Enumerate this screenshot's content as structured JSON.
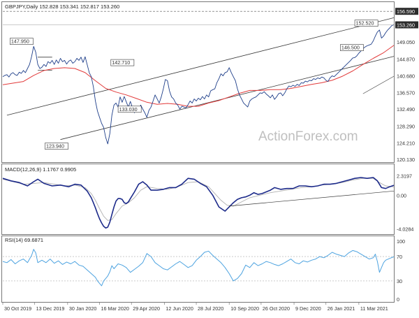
{
  "colors": {
    "price": "#1f3f8a",
    "ma": "#e23a3a",
    "macd": "#1c2a8a",
    "signal": "#b0b0b0",
    "rsi": "#4da3e0",
    "trend": "#3a3a3a",
    "axis_text": "#333333",
    "price_tag_bg": "#2b2b2b",
    "price_tag_text": "#ffffff",
    "watermark": "#bfbfbf"
  },
  "chart_data": [
    {
      "panel": "price",
      "type": "line",
      "title": "GBPJPY,Daily 152.828 153.341 152.817 153.260",
      "watermark": "ActionForex.com",
      "ylim": [
        120.13,
        158.0
      ],
      "y_ticks": [
        "156.590",
        "153.260",
        "149.050",
        "144.870",
        "140.680",
        "136.570",
        "132.490",
        "128.290",
        "124.210",
        "120.130"
      ],
      "x_ticks": [
        "30 Oct 2019",
        "13 Dec 2019",
        "30 Jan 2020",
        "16 Mar 2020",
        "29 Apr 2020",
        "12 Jun 2020",
        "28 Jul 2020",
        "10 Sep 2020",
        "26 Oct 2020",
        "9 Dec 2020",
        "26 Jan 2021",
        "11 Mar 2021"
      ],
      "last_price": "153.260",
      "series": [
        {
          "x": [
            0,
            2,
            4,
            6,
            8,
            10,
            12,
            14,
            16,
            18,
            20,
            22,
            24,
            26,
            28,
            30,
            32,
            34,
            36,
            38,
            40,
            42,
            44,
            46,
            48,
            50,
            52,
            54,
            56,
            58,
            60,
            62,
            64,
            66,
            68,
            70,
            72,
            74,
            76,
            78,
            80,
            82,
            84,
            86,
            88,
            90,
            92,
            94,
            96,
            98,
            100,
            102,
            104,
            106,
            108,
            110,
            112,
            114,
            116,
            118,
            120,
            122,
            124,
            126,
            128,
            130,
            132,
            134,
            136,
            138,
            140,
            142,
            144,
            146,
            148,
            150,
            152,
            154,
            156,
            158,
            160,
            162,
            164,
            166,
            168,
            170,
            172,
            174,
            176,
            178,
            180,
            182,
            184,
            186,
            188,
            190,
            192,
            194,
            196,
            198,
            200,
            202,
            204,
            206,
            208,
            210,
            212,
            214,
            216,
            218,
            220,
            222,
            224,
            226,
            228,
            230,
            232,
            234,
            236,
            238,
            240,
            242,
            244,
            246,
            248,
            250,
            252,
            254,
            256,
            258,
            260,
            262,
            264,
            266,
            268,
            270,
            272,
            274,
            276,
            278,
            280,
            282,
            284,
            286,
            288,
            290,
            292,
            294,
            296,
            298,
            300,
            302,
            304,
            306,
            308,
            310,
            312,
            314,
            316,
            318,
            320,
            322,
            324,
            326,
            328,
            330,
            332,
            334,
            336,
            338,
            340,
            342,
            344,
            346,
            348,
            350,
            352,
            354,
            356,
            358,
            360,
            362,
            364,
            366,
            368,
            370,
            372,
            374,
            376,
            378,
            380
          ],
          "values": [
            140.5,
            140.8,
            141.0,
            140.4,
            141.2,
            141.5,
            141.0,
            140.8,
            141.6,
            141.3,
            142.0,
            141.5,
            142.5,
            143.5,
            145.5,
            147.95,
            146.5,
            143.5,
            142.5,
            142.8,
            143.5,
            143.0,
            144.2,
            143.8,
            144.5,
            143.5,
            144.6,
            143.8,
            145.0,
            144.2,
            144.5,
            143.6,
            144.3,
            144.6,
            143.8,
            144.2,
            145.0,
            144.5,
            145.3,
            144.0,
            145.4,
            143.5,
            141.5,
            140.5,
            138.0,
            134.5,
            132.0,
            130.5,
            129.0,
            128.0,
            125.5,
            123.94,
            126.5,
            131.0,
            133.5,
            134.0,
            133.0,
            135.5,
            134.2,
            135.6,
            134.3,
            133.0,
            134.4,
            132.8,
            131.6,
            133.0,
            132.0,
            133.5,
            132.5,
            131.6,
            130.5,
            132.2,
            133.0,
            134.5,
            136.0,
            135.0,
            134.0,
            135.5,
            137.5,
            139.8,
            139.5,
            137.0,
            135.5,
            135.0,
            134.0,
            133.5,
            132.5,
            133.2,
            133.0,
            132.8,
            133.6,
            134.5,
            134.0,
            135.0,
            134.5,
            135.2,
            134.8,
            135.6,
            135.0,
            136.0,
            135.5,
            137.0,
            137.3,
            137.5,
            139.0,
            140.0,
            141.2,
            140.7,
            141.5,
            141.7,
            142.71,
            141.5,
            140.5,
            139.5,
            137.5,
            136.0,
            135.0,
            134.0,
            133.5,
            133.03,
            134.5,
            135.0,
            135.3,
            135.5,
            136.0,
            136.5,
            136.4,
            136.8,
            136.2,
            135.8,
            135.3,
            136.0,
            134.9,
            135.5,
            136.3,
            136.5,
            135.8,
            136.5,
            137.5,
            138.2,
            138.0,
            138.4,
            138.1,
            138.6,
            138.3,
            139.0,
            138.9,
            139.4,
            139.2,
            139.6,
            139.5,
            140.0,
            139.8,
            140.2,
            140.0,
            140.4,
            140.2,
            139.6,
            139.3,
            140.2,
            140.7,
            140.5,
            141.0,
            141.5,
            142.0,
            142.5,
            143.0,
            143.5,
            144.0,
            144.5,
            145.1,
            145.2,
            145.6,
            146.3,
            146.8,
            147.4,
            147.8,
            148.1,
            148.3,
            148.5,
            149.3,
            150.5,
            151.5,
            152.0,
            150.0,
            150.5,
            151.3,
            152.0,
            152.5,
            153.1,
            153.26
          ]
        },
        {
          "name": "MA",
          "x": [
            0,
            20,
            30,
            40,
            50,
            60,
            70,
            80,
            90,
            100,
            110,
            120,
            130,
            140,
            150,
            160,
            170,
            180,
            190,
            200,
            210,
            220,
            230,
            240,
            250,
            260,
            270,
            280,
            290,
            300,
            310,
            320,
            330,
            340,
            350,
            360,
            370,
            380
          ],
          "values": [
            138.5,
            139.3,
            140.8,
            142.0,
            142.5,
            142.7,
            142.5,
            141.5,
            139.5,
            137.6,
            136.7,
            136.0,
            135.1,
            134.2,
            133.7,
            133.9,
            133.7,
            133.2,
            133.2,
            134.0,
            134.6,
            135.5,
            136.4,
            137.1,
            137.1,
            137.3,
            137.3,
            137.6,
            138.1,
            138.6,
            139.0,
            139.6,
            140.6,
            141.9,
            143.5,
            145.0,
            146.4,
            148.2
          ]
        }
      ],
      "annotations": [
        "147.950",
        "123.940",
        "142.710",
        "133.030",
        "152.520",
        "146.500"
      ]
    },
    {
      "panel": "macd",
      "type": "line",
      "title": "MACD(12,26,9) 1.1767 0.9905",
      "ylim": [
        -4.3,
        2.6
      ],
      "y_ticks": [
        "2.3197",
        "0.00",
        "-4.0284"
      ],
      "series": [
        {
          "x": [
            0,
            8,
            16,
            24,
            30,
            34,
            40,
            48,
            56,
            64,
            70,
            76,
            82,
            86,
            88,
            90,
            92,
            94,
            96,
            98,
            100,
            102,
            104,
            106,
            108,
            110,
            112,
            114,
            116,
            118,
            120,
            122,
            124,
            128,
            132,
            136,
            140,
            144,
            150,
            156,
            162,
            168,
            174,
            180,
            186,
            192,
            198,
            204,
            210,
            216,
            220,
            224,
            228,
            232,
            236,
            240,
            244,
            248,
            252,
            256,
            260,
            264,
            270,
            276,
            282,
            288,
            294,
            300,
            306,
            312,
            318,
            324,
            330,
            336,
            342,
            348,
            354,
            360,
            364,
            368,
            372,
            376,
            380
          ],
          "values": [
            2.0,
            1.7,
            1.5,
            1.1,
            1.6,
            1.9,
            1.4,
            1.1,
            1.2,
            1.0,
            1.3,
            1.2,
            0.5,
            -0.3,
            -0.9,
            -1.5,
            -2.2,
            -2.8,
            -3.3,
            -3.7,
            -3.9,
            -3.8,
            -3.2,
            -2.3,
            -1.4,
            -0.7,
            -0.4,
            -0.4,
            -0.5,
            -0.9,
            -1.0,
            -0.8,
            -0.4,
            0.4,
            1.3,
            1.6,
            1.2,
            0.6,
            0.6,
            0.7,
            0.9,
            0.9,
            1.3,
            2.0,
            1.9,
            1.4,
            1.0,
            0.0,
            -1.4,
            -1.9,
            -1.4,
            -0.9,
            -0.5,
            -0.3,
            -0.2,
            0.0,
            0.3,
            0.1,
            0.2,
            0.4,
            0.6,
            0.9,
            0.7,
            0.8,
            0.8,
            1.1,
            1.1,
            1.0,
            1.1,
            1.3,
            1.3,
            1.4,
            1.6,
            1.8,
            2.0,
            2.1,
            2.0,
            2.1,
            1.7,
            0.9,
            0.8,
            1.0,
            1.18
          ]
        },
        {
          "x": [
            0,
            10,
            20,
            30,
            40,
            50,
            60,
            70,
            80,
            86,
            90,
            94,
            98,
            102,
            106,
            110,
            116,
            122,
            128,
            134,
            140,
            150,
            160,
            170,
            180,
            190,
            200,
            206,
            212,
            218,
            224,
            232,
            240,
            250,
            260,
            270,
            280,
            290,
            300,
            310,
            320,
            330,
            340,
            350,
            360,
            366,
            372,
            380
          ],
          "values": [
            1.9,
            1.6,
            1.3,
            1.4,
            1.5,
            1.3,
            1.1,
            1.2,
            0.9,
            0.2,
            -0.6,
            -1.6,
            -2.5,
            -3.0,
            -2.9,
            -2.2,
            -1.3,
            -0.9,
            -0.3,
            0.6,
            1.0,
            0.8,
            0.7,
            1.0,
            1.5,
            1.6,
            1.0,
            0.2,
            -0.6,
            -1.2,
            -1.3,
            -0.8,
            -0.3,
            0.0,
            0.3,
            0.5,
            0.7,
            0.9,
            1.0,
            1.2,
            1.3,
            1.5,
            1.8,
            2.0,
            2.0,
            1.5,
            1.1,
            0.99
          ]
        }
      ]
    },
    {
      "panel": "rsi",
      "type": "line",
      "title": "RSI(14) 69.6871",
      "ylim": [
        0,
        100
      ],
      "y_ticks": [
        "100",
        "70",
        "30",
        "0"
      ],
      "series": [
        {
          "x": [
            0,
            4,
            8,
            12,
            16,
            20,
            24,
            28,
            30,
            32,
            34,
            38,
            42,
            46,
            50,
            54,
            58,
            62,
            66,
            70,
            74,
            78,
            82,
            86,
            90,
            92,
            94,
            96,
            98,
            100,
            102,
            104,
            106,
            108,
            112,
            116,
            120,
            124,
            128,
            132,
            136,
            140,
            144,
            148,
            152,
            156,
            160,
            164,
            168,
            172,
            176,
            180,
            184,
            188,
            192,
            196,
            200,
            204,
            208,
            212,
            216,
            220,
            224,
            228,
            232,
            236,
            240,
            244,
            248,
            252,
            256,
            260,
            264,
            268,
            272,
            276,
            280,
            284,
            288,
            292,
            296,
            300,
            304,
            308,
            312,
            316,
            320,
            324,
            328,
            332,
            336,
            340,
            344,
            348,
            352,
            356,
            360,
            362,
            364,
            366,
            368,
            370,
            372,
            376,
            380
          ],
          "values": [
            62,
            60,
            65,
            58,
            63,
            66,
            60,
            72,
            82,
            76,
            60,
            64,
            60,
            66,
            59,
            63,
            57,
            61,
            58,
            62,
            56,
            54,
            48,
            42,
            36,
            30,
            26,
            22,
            30,
            34,
            38,
            45,
            55,
            50,
            58,
            56,
            52,
            44,
            49,
            54,
            60,
            75,
            70,
            60,
            55,
            50,
            48,
            53,
            58,
            62,
            57,
            52,
            55,
            64,
            70,
            77,
            79,
            72,
            66,
            60,
            52,
            42,
            30,
            34,
            42,
            56,
            52,
            60,
            55,
            58,
            62,
            60,
            57,
            55,
            58,
            62,
            66,
            60,
            58,
            63,
            61,
            64,
            66,
            70,
            68,
            72,
            77,
            74,
            72,
            70,
            76,
            80,
            78,
            74,
            70,
            66,
            68,
            74,
            62,
            44,
            52,
            60,
            64,
            67,
            69.7
          ]
        }
      ],
      "levels": [
        70,
        30
      ]
    }
  ]
}
